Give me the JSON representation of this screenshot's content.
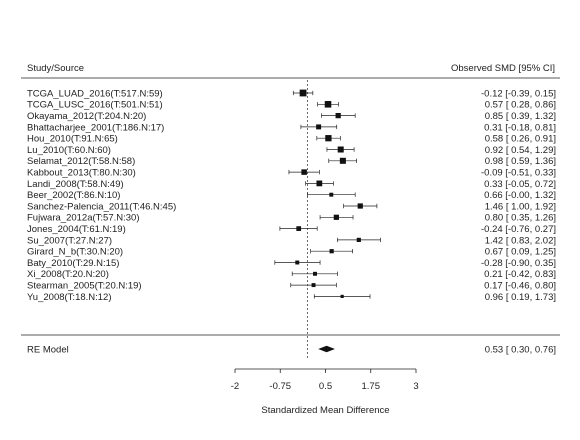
{
  "chart_data": {
    "type": "forest",
    "header_left": "Study/Source",
    "header_right": "Observed SMD [95% CI]",
    "xlabel": "Standardized Mean Difference",
    "xlim": [
      -2,
      3
    ],
    "xticks": [
      "-2",
      "-0.75",
      "0.5",
      "1.75",
      "3"
    ],
    "xtick_values": [
      -2,
      -0.75,
      0.5,
      1.75,
      3
    ],
    "reference_line": 0,
    "studies": [
      {
        "label": "TCGA_LUAD_2016(T:517.N:59)",
        "est": -0.12,
        "lo": -0.39,
        "hi": 0.15,
        "ci_text": "-0.12 [-0.39, 0.15]",
        "weight": 1.0
      },
      {
        "label": "TCGA_LUSC_2016(T:501.N:51)",
        "est": 0.57,
        "lo": 0.28,
        "hi": 0.86,
        "ci_text": "0.57 [ 0.28, 0.86]",
        "weight": 0.95
      },
      {
        "label": "Okayama_2012(T:204.N:20)",
        "est": 0.85,
        "lo": 0.39,
        "hi": 1.32,
        "ci_text": "0.85 [ 0.39, 1.32]",
        "weight": 0.7
      },
      {
        "label": "Bhattacharjee_2001(T:186.N:17)",
        "est": 0.31,
        "lo": -0.18,
        "hi": 0.81,
        "ci_text": "0.31 [-0.18, 0.81]",
        "weight": 0.65
      },
      {
        "label": "Hou_2010(T:91.N:65)",
        "est": 0.58,
        "lo": 0.26,
        "hi": 0.91,
        "ci_text": "0.58 [ 0.26, 0.91]",
        "weight": 0.9
      },
      {
        "label": "Lu_2010(T:60.N:60)",
        "est": 0.92,
        "lo": 0.54,
        "hi": 1.29,
        "ci_text": "0.92 [ 0.54, 1.29]",
        "weight": 0.85
      },
      {
        "label": "Selamat_2012(T:58.N:58)",
        "est": 0.98,
        "lo": 0.59,
        "hi": 1.36,
        "ci_text": "0.98 [ 0.59, 1.36]",
        "weight": 0.85
      },
      {
        "label": "Kabbout_2013(T:80.N:30)",
        "est": -0.09,
        "lo": -0.51,
        "hi": 0.33,
        "ci_text": "-0.09 [-0.51, 0.33]",
        "weight": 0.75
      },
      {
        "label": "Landi_2008(T:58.N:49)",
        "est": 0.33,
        "lo": -0.05,
        "hi": 0.72,
        "ci_text": "0.33 [-0.05, 0.72]",
        "weight": 0.8
      },
      {
        "label": "Beer_2002(T:86.N:10)",
        "est": 0.66,
        "lo": -0.0,
        "hi": 1.32,
        "ci_text": "0.66 [-0.00, 1.32]",
        "weight": 0.45
      },
      {
        "label": "Sanchez-Palencia_2011(T:46.N:45)",
        "est": 1.46,
        "lo": 1.0,
        "hi": 1.92,
        "ci_text": "1.46 [ 1.00, 1.92]",
        "weight": 0.7
      },
      {
        "label": "Fujwara_2012a(T:57.N:30)",
        "est": 0.8,
        "lo": 0.35,
        "hi": 1.26,
        "ci_text": "0.80 [ 0.35, 1.26]",
        "weight": 0.7
      },
      {
        "label": "Jones_2004(T:61.N:19)",
        "est": -0.24,
        "lo": -0.76,
        "hi": 0.27,
        "ci_text": "-0.24 [-0.76, 0.27]",
        "weight": 0.6
      },
      {
        "label": "Su_2007(T:27.N:27)",
        "est": 1.42,
        "lo": 0.83,
        "hi": 2.02,
        "ci_text": "1.42 [ 0.83, 2.02]",
        "weight": 0.5
      },
      {
        "label": "Girard_N_b(T:30.N:20)",
        "est": 0.67,
        "lo": 0.09,
        "hi": 1.25,
        "ci_text": "0.67 [ 0.09, 1.25]",
        "weight": 0.5
      },
      {
        "label": "Baty_2010(T:29.N:15)",
        "est": -0.28,
        "lo": -0.9,
        "hi": 0.35,
        "ci_text": "-0.28 [-0.90, 0.35]",
        "weight": 0.45
      },
      {
        "label": "Xi_2008(T:20.N:20)",
        "est": 0.21,
        "lo": -0.42,
        "hi": 0.83,
        "ci_text": "0.21 [-0.42, 0.83]",
        "weight": 0.45
      },
      {
        "label": "Stearman_2005(T:20.N:19)",
        "est": 0.17,
        "lo": -0.46,
        "hi": 0.8,
        "ci_text": "0.17 [-0.46, 0.80]",
        "weight": 0.45
      },
      {
        "label": "Yu_2008(T:18.N:12)",
        "est": 0.96,
        "lo": 0.19,
        "hi": 1.73,
        "ci_text": "0.96 [ 0.19, 1.73]",
        "weight": 0.3
      }
    ],
    "summary": {
      "label": "RE Model",
      "est": 0.53,
      "lo": 0.3,
      "hi": 0.76,
      "ci_text": "0.53 [ 0.30, 0.76]"
    }
  }
}
